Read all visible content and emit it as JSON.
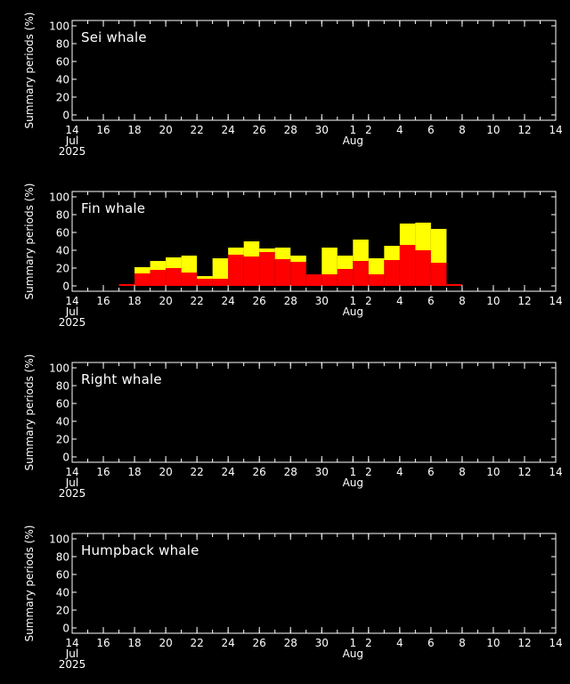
{
  "chart_data": [
    {
      "type": "bar",
      "stacked": true,
      "title": "Sei whale",
      "ylabel": "Summary periods (%)",
      "ylim": [
        0,
        100
      ],
      "yticks": [
        "0",
        "20",
        "40",
        "60",
        "80",
        "100"
      ],
      "xlim": [
        "2025-07-14",
        "2025-08-14"
      ],
      "xticks": [
        "14",
        "16",
        "18",
        "20",
        "22",
        "24",
        "26",
        "28",
        "30",
        "1",
        "2",
        "4",
        "6",
        "8",
        "10",
        "12",
        "14"
      ],
      "xsub": {
        "jul": "Jul",
        "aug": "Aug",
        "year": "2025"
      },
      "grid": false,
      "series": []
    },
    {
      "type": "bar",
      "stacked": true,
      "title": "Fin whale",
      "ylabel": "Summary periods (%)",
      "ylim": [
        0,
        100
      ],
      "yticks": [
        "0",
        "20",
        "40",
        "60",
        "80",
        "100"
      ],
      "xlim": [
        "2025-07-14",
        "2025-08-14"
      ],
      "xticks": [
        "14",
        "16",
        "18",
        "20",
        "22",
        "24",
        "26",
        "28",
        "30",
        "1",
        "2",
        "4",
        "6",
        "8",
        "10",
        "12",
        "14"
      ],
      "xsub": {
        "jul": "Jul",
        "aug": "Aug",
        "year": "2025"
      },
      "grid": false,
      "categories": [
        "2025-07-17",
        "2025-07-18",
        "2025-07-19",
        "2025-07-20",
        "2025-07-21",
        "2025-07-22",
        "2025-07-23",
        "2025-07-24",
        "2025-07-25",
        "2025-07-26",
        "2025-07-27",
        "2025-07-28",
        "2025-07-29",
        "2025-07-30",
        "2025-07-31",
        "2025-08-01",
        "2025-08-02",
        "2025-08-03",
        "2025-08-04",
        "2025-08-05",
        "2025-08-06",
        "2025-08-07",
        "2025-08-08"
      ],
      "series": [
        {
          "color": "#ff0000",
          "values": [
            2,
            14,
            18,
            20,
            15,
            8,
            8,
            35,
            33,
            38,
            30,
            27,
            13,
            13,
            19,
            28,
            13,
            29,
            46,
            40,
            26,
            2,
            0
          ]
        },
        {
          "color": "#ffff00",
          "values": [
            0,
            7,
            10,
            12,
            19,
            3,
            23,
            8,
            17,
            4,
            13,
            7,
            0,
            30,
            15,
            24,
            18,
            16,
            24,
            31,
            38,
            0,
            0
          ]
        }
      ]
    },
    {
      "type": "bar",
      "stacked": true,
      "title": "Right whale",
      "ylabel": "Summary periods (%)",
      "ylim": [
        0,
        100
      ],
      "yticks": [
        "0",
        "20",
        "40",
        "60",
        "80",
        "100"
      ],
      "xlim": [
        "2025-07-14",
        "2025-08-14"
      ],
      "xticks": [
        "14",
        "16",
        "18",
        "20",
        "22",
        "24",
        "26",
        "28",
        "30",
        "1",
        "2",
        "4",
        "6",
        "8",
        "10",
        "12",
        "14"
      ],
      "xsub": {
        "jul": "Jul",
        "aug": "Aug",
        "year": "2025"
      },
      "grid": false,
      "series": []
    },
    {
      "type": "bar",
      "stacked": true,
      "title": "Humpback whale",
      "ylabel": "Summary periods (%)",
      "ylim": [
        0,
        100
      ],
      "yticks": [
        "0",
        "20",
        "40",
        "60",
        "80",
        "100"
      ],
      "xlim": [
        "2025-07-14",
        "2025-08-14"
      ],
      "xticks": [
        "14",
        "16",
        "18",
        "20",
        "22",
        "24",
        "26",
        "28",
        "30",
        "1",
        "2",
        "4",
        "6",
        "8",
        "10",
        "12",
        "14"
      ],
      "xsub": {
        "jul": "Jul",
        "aug": "Aug",
        "year": "2025"
      },
      "grid": false,
      "series": []
    }
  ]
}
